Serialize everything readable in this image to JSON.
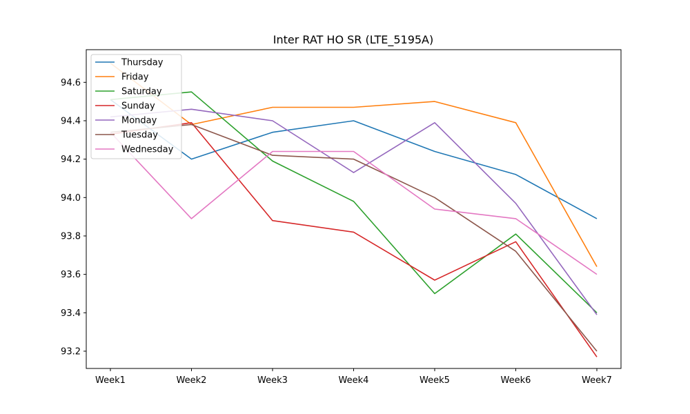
{
  "chart_data": {
    "type": "line",
    "title": "Inter RAT HO SR (LTE_5195A)",
    "xlabel": "",
    "ylabel": "",
    "categories": [
      "Week1",
      "Week2",
      "Week3",
      "Week4",
      "Week5",
      "Week6",
      "Week7"
    ],
    "ylim": [
      93.11,
      94.77
    ],
    "yticks": [
      "93.2",
      "93.4",
      "93.6",
      "93.8",
      "94.0",
      "94.2",
      "94.4",
      "94.6"
    ],
    "grid": false,
    "legend_position": "top-left",
    "series": [
      {
        "name": "Thursday",
        "color": "#1f77b4",
        "values": [
          94.51,
          94.2,
          94.34,
          94.4,
          94.24,
          94.12,
          93.89
        ]
      },
      {
        "name": "Friday",
        "color": "#ff7f0e",
        "values": [
          94.7,
          94.38,
          94.47,
          94.47,
          94.5,
          94.39,
          93.64
        ]
      },
      {
        "name": "Saturday",
        "color": "#2ca02c",
        "values": [
          94.51,
          94.55,
          94.19,
          93.98,
          93.5,
          93.81,
          93.4
        ]
      },
      {
        "name": "Sunday",
        "color": "#d62728",
        "values": [
          94.33,
          94.39,
          93.88,
          93.82,
          93.57,
          93.77,
          93.17
        ]
      },
      {
        "name": "Monday",
        "color": "#9467bd",
        "values": [
          94.42,
          94.46,
          94.4,
          94.13,
          94.39,
          93.97,
          93.39
        ]
      },
      {
        "name": "Tuesday",
        "color": "#8c564b",
        "values": [
          94.34,
          94.38,
          94.22,
          94.2,
          94.0,
          93.72,
          93.2
        ]
      },
      {
        "name": "Wednesday",
        "color": "#e377c2",
        "values": [
          94.34,
          93.89,
          94.24,
          94.24,
          93.94,
          93.89,
          93.6
        ]
      }
    ]
  }
}
